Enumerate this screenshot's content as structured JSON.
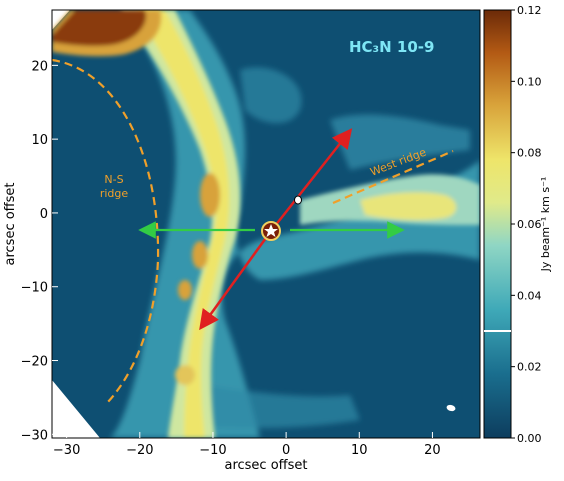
{
  "map": {
    "title": "HC₃N 10-9",
    "xlabel": "arcsec offset",
    "ylabel": "arcsec offset",
    "x_ticks": [
      "−30",
      "−20",
      "−10",
      "0",
      "10",
      "20"
    ],
    "y_ticks": [
      "20",
      "10",
      "0",
      "−10",
      "−20",
      "−30"
    ],
    "x_range": [
      -32,
      26.5
    ],
    "y_range": [
      -30.5,
      27.5
    ],
    "annotations": {
      "ns_ridge": "N-S\nridge",
      "west_ridge": "West ridge"
    },
    "colors": {
      "background": "#0e4f72",
      "title": "#7ee6f5",
      "dashed": "#f0a02a",
      "red_arrow": "#e02020",
      "green_arrow": "#33cc44"
    }
  },
  "colorbar": {
    "label": "Jy beam⁻¹ km s⁻¹",
    "ticks": [
      "0.12",
      "0.10",
      "0.08",
      "0.06",
      "0.04",
      "0.02",
      "0.00"
    ],
    "range": [
      0,
      0.12
    ],
    "marker_value": 0.03
  }
}
